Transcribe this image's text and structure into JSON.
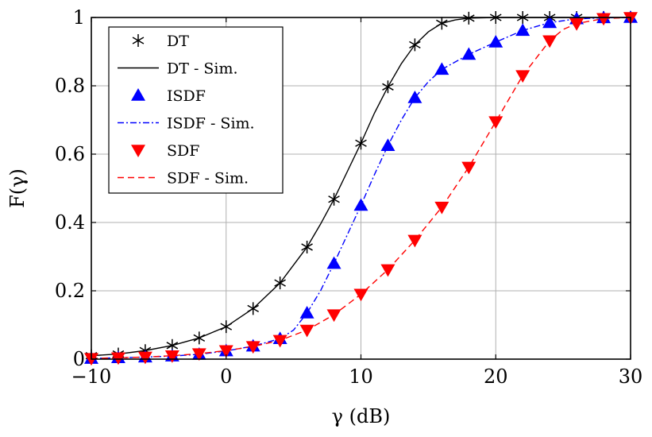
{
  "chart_data": {
    "type": "line",
    "title": "",
    "xlabel": "γ (dB)",
    "ylabel": "F(γ)",
    "xlim": [
      -10,
      30
    ],
    "ylim": [
      0,
      1
    ],
    "xticks": [
      -10,
      0,
      10,
      20,
      30
    ],
    "yticks": [
      0,
      0.2,
      0.4,
      0.6,
      0.8,
      1
    ],
    "xtick_labels": [
      "−10",
      "0",
      "10",
      "20",
      "30"
    ],
    "ytick_labels": [
      "0",
      "0.2",
      "0.4",
      "0.6",
      "0.8",
      "1"
    ],
    "grid": true,
    "legend_position": "top-left",
    "series": [
      {
        "name": "DT",
        "kind": "markers",
        "marker": "asterisk",
        "color": "#000000",
        "x": [
          -10,
          -8,
          -6,
          -4,
          -2,
          0,
          2,
          4,
          6,
          8,
          10,
          12,
          14,
          16,
          18,
          20,
          22,
          24,
          26,
          28,
          30
        ],
        "y": [
          0.01,
          0.015,
          0.025,
          0.04,
          0.062,
          0.095,
          0.148,
          0.223,
          0.328,
          0.468,
          0.632,
          0.797,
          0.92,
          0.983,
          0.998,
          1.0,
          1.0,
          1.0,
          1.0,
          1.0,
          1.0
        ]
      },
      {
        "name": "DT - Sim.",
        "kind": "line",
        "dash": "solid",
        "color": "#000000",
        "x": [
          -10,
          -8,
          -6,
          -4,
          -2,
          0,
          2,
          4,
          6,
          7,
          8,
          9,
          10,
          11,
          12,
          13,
          14,
          15,
          16,
          17,
          18,
          20,
          22,
          24,
          26,
          28,
          30
        ],
        "y": [
          0.01,
          0.015,
          0.025,
          0.04,
          0.062,
          0.095,
          0.148,
          0.223,
          0.328,
          0.395,
          0.468,
          0.55,
          0.632,
          0.72,
          0.797,
          0.865,
          0.92,
          0.958,
          0.983,
          0.993,
          0.998,
          1.0,
          1.0,
          1.0,
          1.0,
          1.0,
          1.0
        ]
      },
      {
        "name": "ISDF",
        "kind": "markers",
        "marker": "triangle-up",
        "color": "#0000ff",
        "x": [
          -10,
          -8,
          -6,
          -4,
          -2,
          0,
          2,
          4,
          6,
          8,
          10,
          12,
          14,
          16,
          18,
          20,
          22,
          24,
          26,
          28,
          30
        ],
        "y": [
          0.002,
          0.004,
          0.006,
          0.009,
          0.014,
          0.024,
          0.038,
          0.06,
          0.135,
          0.28,
          0.45,
          0.625,
          0.765,
          0.848,
          0.892,
          0.928,
          0.962,
          0.985,
          0.996,
          0.999,
          1.0
        ]
      },
      {
        "name": "ISDF - Sim.",
        "kind": "line",
        "dash": "dashdot",
        "color": "#0000ff",
        "x": [
          -10,
          -8,
          -6,
          -4,
          -2,
          0,
          2,
          4,
          5,
          6,
          7,
          8,
          9,
          10,
          11,
          12,
          13,
          14,
          15,
          16,
          18,
          20,
          22,
          24,
          26,
          28,
          30
        ],
        "y": [
          0.002,
          0.004,
          0.006,
          0.009,
          0.014,
          0.024,
          0.038,
          0.06,
          0.085,
          0.135,
          0.2,
          0.28,
          0.365,
          0.45,
          0.54,
          0.625,
          0.7,
          0.765,
          0.812,
          0.848,
          0.892,
          0.928,
          0.962,
          0.985,
          0.996,
          0.999,
          1.0
        ]
      },
      {
        "name": "SDF",
        "kind": "markers",
        "marker": "triangle-down",
        "color": "#ff0000",
        "x": [
          -10,
          -8,
          -6,
          -4,
          -2,
          0,
          2,
          4,
          6,
          8,
          10,
          12,
          14,
          16,
          18,
          20,
          22,
          24,
          26,
          28,
          30
        ],
        "y": [
          0.002,
          0.004,
          0.006,
          0.01,
          0.016,
          0.025,
          0.037,
          0.055,
          0.085,
          0.13,
          0.19,
          0.262,
          0.348,
          0.445,
          0.562,
          0.695,
          0.83,
          0.932,
          0.982,
          0.997,
          1.0
        ]
      },
      {
        "name": "SDF - Sim.",
        "kind": "line",
        "dash": "dashed",
        "color": "#ff0000",
        "x": [
          -10,
          -8,
          -6,
          -4,
          -2,
          0,
          2,
          4,
          6,
          8,
          10,
          12,
          14,
          16,
          18,
          20,
          22,
          24,
          25,
          26,
          28,
          30
        ],
        "y": [
          0.002,
          0.004,
          0.006,
          0.01,
          0.016,
          0.025,
          0.037,
          0.055,
          0.085,
          0.13,
          0.19,
          0.262,
          0.348,
          0.445,
          0.562,
          0.695,
          0.83,
          0.932,
          0.965,
          0.982,
          0.997,
          1.0
        ]
      }
    ]
  }
}
